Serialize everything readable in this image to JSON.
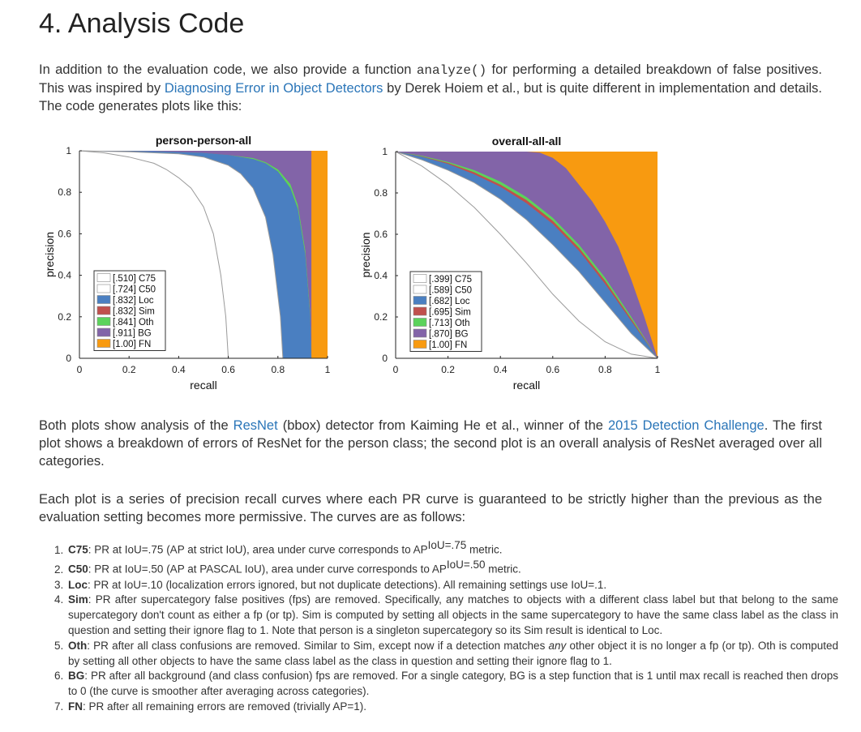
{
  "heading": "4. Analysis Code",
  "intro": {
    "before_code": "In addition to the evaluation code, we also provide a function ",
    "code": "analyze()",
    "after_code": " for performing a detailed breakdown of false positives. This was inspired by ",
    "link": "Diagnosing Error in Object Detectors",
    "after_link": " by Derek Hoiem et al., but is quite different in implementation and details. The code generates plots like this:"
  },
  "colors": {
    "C75": "#ffffff",
    "C50": "#ffffff",
    "Loc": "#4a7fc1",
    "Sim": "#c0504d",
    "Oth": "#5bd35b",
    "BG": "#8264a8",
    "FN": "#f89a10",
    "link": "#2a75b8"
  },
  "chart_data": [
    {
      "type": "area",
      "title": "person-person-all",
      "xlabel": "recall",
      "ylabel": "precision",
      "xlim": [
        0,
        1
      ],
      "ylim": [
        0,
        1
      ],
      "xticks": [
        "0",
        "0.2",
        "0.4",
        "0.6",
        "0.8",
        "1"
      ],
      "yticks": [
        "0",
        "0.2",
        "0.4",
        "0.6",
        "0.8",
        "1"
      ],
      "legend_position": "bottom-left",
      "legend": [
        "[.510] C75",
        "[.724] C50",
        "[.832] Loc",
        "[.832] Sim",
        "[.841] Oth",
        "[.911] BG",
        "[1.00] FN"
      ],
      "series": [
        {
          "key": "C75",
          "ap": 0.51,
          "x": [
            0,
            0.1,
            0.2,
            0.3,
            0.35,
            0.4,
            0.45,
            0.5,
            0.54,
            0.57,
            0.59,
            0.6
          ],
          "y": [
            1,
            0.99,
            0.97,
            0.94,
            0.91,
            0.87,
            0.82,
            0.73,
            0.6,
            0.4,
            0.2,
            0
          ]
        },
        {
          "key": "C50",
          "ap": 0.724,
          "x": [
            0,
            0.2,
            0.4,
            0.5,
            0.6,
            0.65,
            0.7,
            0.75,
            0.78,
            0.81,
            0.82
          ],
          "y": [
            1,
            0.995,
            0.985,
            0.97,
            0.93,
            0.89,
            0.82,
            0.68,
            0.5,
            0.2,
            0
          ]
        },
        {
          "key": "Loc",
          "ap": 0.832,
          "x": [
            0,
            0.3,
            0.5,
            0.6,
            0.7,
            0.75,
            0.8,
            0.85,
            0.88,
            0.91,
            0.93,
            0.935
          ],
          "y": [
            1,
            0.998,
            0.99,
            0.98,
            0.96,
            0.94,
            0.9,
            0.82,
            0.72,
            0.5,
            0.2,
            0
          ]
        },
        {
          "key": "Sim",
          "ap": 0.832,
          "x": [
            0,
            0.3,
            0.5,
            0.6,
            0.7,
            0.75,
            0.8,
            0.85,
            0.88,
            0.91,
            0.93,
            0.935
          ],
          "y": [
            1,
            0.998,
            0.99,
            0.98,
            0.96,
            0.94,
            0.9,
            0.82,
            0.72,
            0.5,
            0.2,
            0
          ]
        },
        {
          "key": "Oth",
          "ap": 0.841,
          "x": [
            0,
            0.3,
            0.5,
            0.6,
            0.7,
            0.75,
            0.8,
            0.85,
            0.88,
            0.91,
            0.93,
            0.935
          ],
          "y": [
            1,
            0.998,
            0.99,
            0.98,
            0.965,
            0.945,
            0.91,
            0.84,
            0.74,
            0.52,
            0.22,
            0
          ]
        },
        {
          "key": "BG",
          "ap": 0.911,
          "x": [
            0,
            0.935,
            0.935
          ],
          "y": [
            1,
            1,
            0
          ]
        },
        {
          "key": "FN",
          "ap": 1.0,
          "x": [
            0,
            1,
            1
          ],
          "y": [
            1,
            1,
            0
          ]
        }
      ]
    },
    {
      "type": "area",
      "title": "overall-all-all",
      "xlabel": "recall",
      "ylabel": "precision",
      "xlim": [
        0,
        1
      ],
      "ylim": [
        0,
        1
      ],
      "xticks": [
        "0",
        "0.2",
        "0.4",
        "0.6",
        "0.8",
        "1"
      ],
      "yticks": [
        "0",
        "0.2",
        "0.4",
        "0.6",
        "0.8",
        "1"
      ],
      "legend_position": "bottom-left",
      "legend": [
        "[.399] C75",
        "[.589] C50",
        "[.682] Loc",
        "[.695] Sim",
        "[.713] Oth",
        "[.870] BG",
        "[1.00] FN"
      ],
      "series": [
        {
          "key": "C75",
          "ap": 0.399,
          "x": [
            0,
            0.1,
            0.2,
            0.3,
            0.4,
            0.5,
            0.6,
            0.7,
            0.8,
            0.85,
            0.9,
            0.95,
            1.0
          ],
          "y": [
            1,
            0.93,
            0.84,
            0.73,
            0.6,
            0.46,
            0.31,
            0.18,
            0.08,
            0.05,
            0.02,
            0.01,
            0
          ]
        },
        {
          "key": "C50",
          "ap": 0.589,
          "x": [
            0,
            0.1,
            0.2,
            0.3,
            0.4,
            0.5,
            0.6,
            0.7,
            0.8,
            0.9,
            1.0
          ],
          "y": [
            1,
            0.96,
            0.91,
            0.85,
            0.77,
            0.67,
            0.55,
            0.42,
            0.27,
            0.12,
            0
          ]
        },
        {
          "key": "Loc",
          "ap": 0.682,
          "x": [
            0,
            0.1,
            0.2,
            0.3,
            0.4,
            0.5,
            0.6,
            0.7,
            0.8,
            0.9,
            1.0
          ],
          "y": [
            1,
            0.975,
            0.94,
            0.89,
            0.83,
            0.75,
            0.65,
            0.52,
            0.36,
            0.18,
            0
          ]
        },
        {
          "key": "Sim",
          "ap": 0.695,
          "x": [
            0,
            0.1,
            0.2,
            0.3,
            0.4,
            0.5,
            0.6,
            0.7,
            0.8,
            0.9,
            1.0
          ],
          "y": [
            1,
            0.977,
            0.945,
            0.9,
            0.84,
            0.765,
            0.665,
            0.535,
            0.375,
            0.19,
            0
          ]
        },
        {
          "key": "Oth",
          "ap": 0.713,
          "x": [
            0,
            0.1,
            0.2,
            0.3,
            0.4,
            0.5,
            0.6,
            0.7,
            0.8,
            0.9,
            1.0
          ],
          "y": [
            1,
            0.98,
            0.95,
            0.91,
            0.855,
            0.78,
            0.68,
            0.55,
            0.39,
            0.2,
            0
          ]
        },
        {
          "key": "BG",
          "ap": 0.87,
          "x": [
            0,
            0.3,
            0.4,
            0.5,
            0.55,
            0.6,
            0.65,
            0.7,
            0.75,
            0.8,
            0.85,
            0.9,
            0.95,
            1.0
          ],
          "y": [
            1,
            1,
            1,
            1,
            0.995,
            0.97,
            0.92,
            0.84,
            0.76,
            0.66,
            0.54,
            0.38,
            0.2,
            0
          ]
        },
        {
          "key": "FN",
          "ap": 1.0,
          "x": [
            0,
            1,
            1
          ],
          "y": [
            1,
            1,
            0
          ]
        }
      ]
    }
  ],
  "para2": {
    "before_link1": "Both plots show analysis of the ",
    "link1": "ResNet",
    "after_link1": " (bbox) detector from Kaiming He et al., winner of the ",
    "link2": "2015 Detection Challenge",
    "after_link2": ". The first plot shows a breakdown of errors of ResNet for the person class; the second plot is an overall analysis of ResNet averaged over all categories."
  },
  "para3": "Each plot is a series of precision recall curves where each PR curve is guaranteed to be strictly higher than the previous as the evaluation setting becomes more permissive. The curves are as follows:",
  "list": [
    {
      "term": "C75",
      "text1": ": PR at IoU=.75 (AP at strict IoU), area under curve corresponds to AP",
      "sup": "IoU=.75",
      "text2": " metric."
    },
    {
      "term": "C50",
      "text1": ": PR at IoU=.50 (AP at PASCAL IoU), area under curve corresponds to AP",
      "sup": "IoU=.50",
      "text2": " metric."
    },
    {
      "term": "Loc",
      "text1": ": PR at IoU=.10 (localization errors ignored, but not duplicate detections). All remaining settings use IoU=.1."
    },
    {
      "term": "Sim",
      "text1": ": PR after supercategory false positives (fps) are removed. Specifically, any matches to objects with a different class label but that belong to the same supercategory don't count as either a fp (or tp). Sim is computed by setting all objects in the same supercategory to have the same class label as the class in question and setting their ignore flag to 1. Note that person is a singleton supercategory so its Sim result is identical to Loc."
    },
    {
      "term": "Oth",
      "text1": ": PR after all class confusions are removed. Similar to Sim, except now if a detection matches ",
      "em": "any",
      "text2": " other object it is no longer a fp (or tp). Oth is computed by setting all other objects to have the same class label as the class in question and setting their ignore flag to 1."
    },
    {
      "term": "BG",
      "text1": ": PR after all background (and class confusion) fps are removed. For a single category, BG is a step function that is 1 until max recall is reached then drops to 0 (the curve is smoother after averaging across categories)."
    },
    {
      "term": "FN",
      "text1": ": PR after all remaining errors are removed (trivially AP=1)."
    }
  ]
}
